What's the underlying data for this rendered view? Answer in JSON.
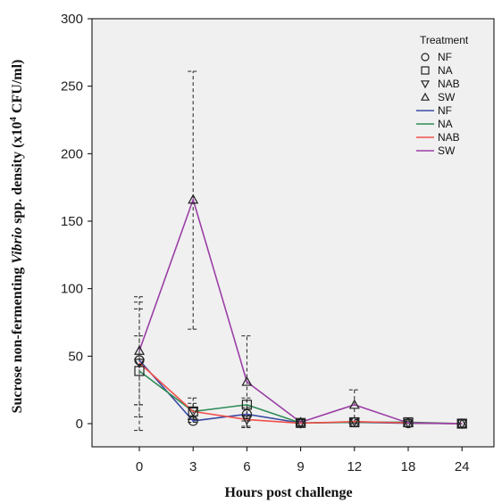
{
  "chart_data": {
    "type": "line",
    "xlabel": "Hours post challenge",
    "ylabel_parts": {
      "before": "Sucrose non-fermenting ",
      "italic": "Vibrio",
      "middle": " spp. density (x10",
      "superscript": "4",
      "after": " CFU/ml)"
    },
    "categories": [
      "0",
      "3",
      "6",
      "9",
      "12",
      "18",
      "24"
    ],
    "ylim": [
      0,
      300
    ],
    "yticks": [
      0,
      50,
      100,
      150,
      200,
      250,
      300
    ],
    "grid": false,
    "plot_background": "#f0f0f0",
    "legend": {
      "position": "top-right",
      "title": "Treatment",
      "marker_entries": [
        {
          "label": "NF",
          "marker": "circle"
        },
        {
          "label": "NA",
          "marker": "square"
        },
        {
          "label": "NAB",
          "marker": "triangle-down"
        },
        {
          "label": "SW",
          "marker": "triangle-up"
        }
      ],
      "line_entries": [
        {
          "label": "NF",
          "color": "#3b4aa3"
        },
        {
          "label": "NA",
          "color": "#2e8b57"
        },
        {
          "label": "NAB",
          "color": "#f0504a"
        },
        {
          "label": "SW",
          "color": "#9b3fa6"
        }
      ]
    },
    "series": [
      {
        "name": "NF",
        "marker": "circle",
        "color": "#3b4aa3",
        "values": [
          47,
          2,
          7,
          0.5,
          1,
          0.3,
          0
        ],
        "error_low": [
          14,
          1,
          2,
          0,
          0.3,
          0,
          0
        ],
        "error_high": [
          90,
          4,
          12,
          1,
          2,
          1,
          0
        ]
      },
      {
        "name": "NA",
        "marker": "square",
        "color": "#2e8b57",
        "values": [
          39,
          9,
          14,
          0.5,
          1,
          1,
          0
        ],
        "error_low": [
          -5,
          3,
          -3,
          0,
          0,
          0,
          0
        ],
        "error_high": [
          65,
          15,
          19,
          1,
          2,
          2,
          0
        ]
      },
      {
        "name": "NAB",
        "marker": "triangle-down",
        "color": "#f0504a",
        "values": [
          45,
          9,
          3,
          0.3,
          1.5,
          0.5,
          0
        ],
        "error_low": [
          5,
          3,
          -2,
          0,
          0,
          0,
          0
        ],
        "error_high": [
          85,
          19,
          6,
          0.5,
          3,
          1,
          0
        ]
      },
      {
        "name": "SW",
        "marker": "triangle-up",
        "color": "#9b3fa6",
        "values": [
          54,
          166,
          31,
          1,
          14,
          0.5,
          0
        ],
        "error_low": [
          14,
          70,
          -3,
          0,
          4,
          0,
          0
        ],
        "error_high": [
          94,
          261,
          65,
          2,
          25,
          1,
          0
        ]
      }
    ]
  }
}
